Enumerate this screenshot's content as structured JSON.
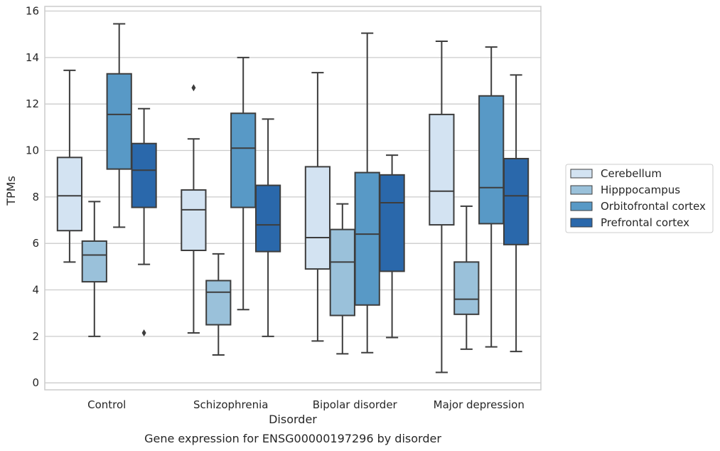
{
  "chart_data": {
    "type": "box",
    "categories": [
      "Control",
      "Schizophrenia",
      "Bipolar disorder",
      "Major depression"
    ],
    "ylabel": "TPMs",
    "xlabel": "Disorder",
    "caption": "Gene expression for ENSG00000197296 by disorder",
    "ylim": [
      -0.3,
      16.2
    ],
    "yticks": [
      0,
      2,
      4,
      6,
      8,
      10,
      12,
      14,
      16
    ],
    "grid": true,
    "legend_position": "right",
    "series": [
      {
        "name": "Cerebellum",
        "color": "#d3e3f2",
        "boxes": [
          {
            "min": 5.2,
            "q1": 6.55,
            "median": 8.05,
            "q3": 9.7,
            "max": 13.45,
            "outliers": []
          },
          {
            "min": 2.15,
            "q1": 5.7,
            "median": 7.45,
            "q3": 8.3,
            "max": 10.5,
            "outliers": [
              12.7
            ]
          },
          {
            "min": 1.8,
            "q1": 4.9,
            "median": 6.25,
            "q3": 9.3,
            "max": 13.35,
            "outliers": []
          },
          {
            "min": 0.45,
            "q1": 6.8,
            "median": 8.25,
            "q3": 11.55,
            "max": 14.7,
            "outliers": []
          }
        ]
      },
      {
        "name": "Hipppocampus",
        "color": "#9ac1da",
        "boxes": [
          {
            "min": 2.0,
            "q1": 4.35,
            "median": 5.5,
            "q3": 6.1,
            "max": 7.8,
            "outliers": []
          },
          {
            "min": 1.2,
            "q1": 2.5,
            "median": 3.9,
            "q3": 4.4,
            "max": 5.55,
            "outliers": []
          },
          {
            "min": 1.25,
            "q1": 2.9,
            "median": 5.2,
            "q3": 6.6,
            "max": 7.7,
            "outliers": []
          },
          {
            "min": 1.45,
            "q1": 2.95,
            "median": 3.6,
            "q3": 5.2,
            "max": 7.6,
            "outliers": []
          }
        ]
      },
      {
        "name": "Orbitofrontal cortex",
        "color": "#5899c6",
        "boxes": [
          {
            "min": 6.7,
            "q1": 9.2,
            "median": 11.55,
            "q3": 13.3,
            "max": 15.45,
            "outliers": []
          },
          {
            "min": 3.15,
            "q1": 7.55,
            "median": 10.1,
            "q3": 11.6,
            "max": 14.0,
            "outliers": []
          },
          {
            "min": 1.3,
            "q1": 3.35,
            "median": 6.4,
            "q3": 9.05,
            "max": 15.05,
            "outliers": []
          },
          {
            "min": 1.55,
            "q1": 6.85,
            "median": 8.4,
            "q3": 12.35,
            "max": 14.45,
            "outliers": []
          }
        ]
      },
      {
        "name": "Prefrontal cortex",
        "color": "#2a68ab",
        "boxes": [
          {
            "min": 5.1,
            "q1": 7.55,
            "median": 9.15,
            "q3": 10.3,
            "max": 11.8,
            "outliers": [
              2.15
            ]
          },
          {
            "min": 2.0,
            "q1": 5.65,
            "median": 6.8,
            "q3": 8.5,
            "max": 11.35,
            "outliers": []
          },
          {
            "min": 1.95,
            "q1": 4.8,
            "median": 7.75,
            "q3": 8.95,
            "max": 9.8,
            "outliers": []
          },
          {
            "min": 1.35,
            "q1": 5.95,
            "median": 8.05,
            "q3": 9.65,
            "max": 13.25,
            "outliers": []
          }
        ]
      }
    ]
  }
}
